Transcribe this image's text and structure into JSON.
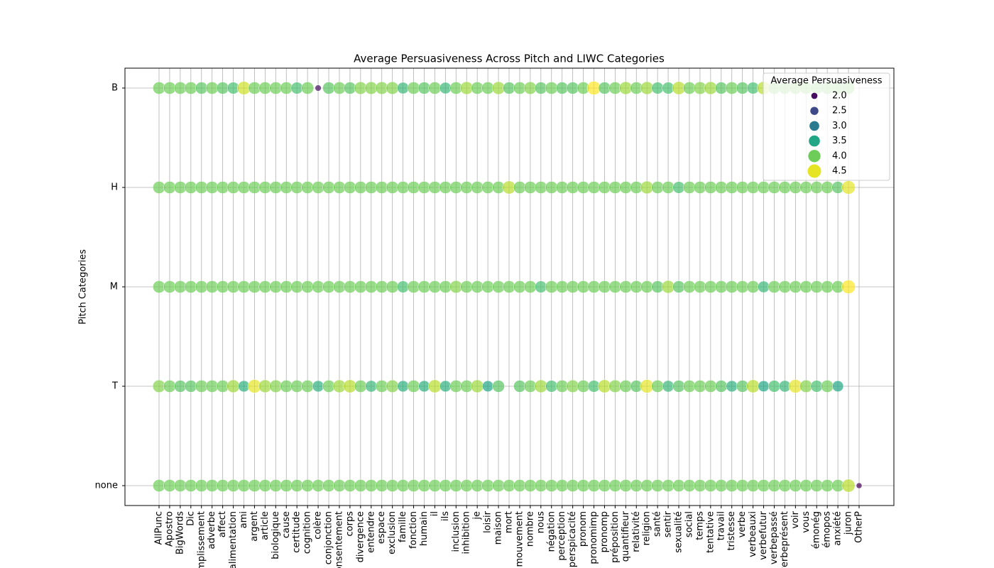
{
  "chart_data": {
    "type": "categorical-scatter",
    "title": "Average Persuasiveness Across Pitch and LIWC Categories",
    "ylabel": "Pitch Categories",
    "categories": [
      "AllPunc",
      "Apostro",
      "BigWords",
      "Dic",
      "accomplissement",
      "adverbe",
      "affect",
      "alimentation",
      "ami",
      "argent",
      "article",
      "biologique",
      "cause",
      "certitude",
      "cognition",
      "colère",
      "conjonction",
      "consentement",
      "corps",
      "divergence",
      "entendre",
      "espace",
      "exclusion",
      "famille",
      "fonction",
      "humain",
      "il",
      "ils",
      "inclusion",
      "inhibition",
      "je",
      "loisir",
      "maison",
      "mort",
      "mouvement",
      "nombre",
      "nous",
      "négation",
      "perception",
      "perspicacité",
      "pronom",
      "pronomimp",
      "pronomp",
      "préposition",
      "quantifieur",
      "relativité",
      "religion",
      "santé",
      "sentir",
      "sexualité",
      "social",
      "temps",
      "tentative",
      "travail",
      "tristesse",
      "verbe",
      "verbeauxi",
      "verbefutur",
      "verbepassé",
      "verbeprésent",
      "voir",
      "vous",
      "émonég",
      "émopos",
      "anxiété",
      "juron",
      "OtherP"
    ],
    "y_categories": [
      "B",
      "H",
      "M",
      "T",
      "none"
    ],
    "values": [
      [
        4.0,
        4.0,
        4.0,
        4.0,
        3.9,
        4.0,
        3.9,
        3.8,
        4.4,
        4.0,
        4.0,
        4.0,
        4.0,
        3.8,
        4.0,
        2.0,
        3.9,
        4.0,
        3.9,
        4.1,
        4.1,
        4.1,
        4.1,
        3.7,
        4.0,
        3.9,
        4.0,
        3.7,
        4.0,
        4.2,
        4.0,
        4.0,
        4.2,
        3.9,
        4.0,
        4.1,
        3.9,
        4.0,
        3.9,
        3.9,
        4.0,
        4.6,
        3.9,
        4.0,
        4.2,
        4.0,
        4.2,
        3.8,
        3.8,
        4.3,
        4.0,
        4.1,
        4.2,
        3.9,
        4.0,
        3.9,
        3.8,
        4.3,
        4.0,
        4.0,
        4.0,
        4.0,
        4.0,
        4.0,
        4.0,
        4.0,
        null
      ],
      [
        4.0,
        4.0,
        4.0,
        4.0,
        4.0,
        4.0,
        4.0,
        4.0,
        4.0,
        4.0,
        4.0,
        4.0,
        4.0,
        4.0,
        4.0,
        4.0,
        4.0,
        4.0,
        4.0,
        4.0,
        4.0,
        4.0,
        4.0,
        4.0,
        4.0,
        4.0,
        4.0,
        4.0,
        4.0,
        4.0,
        4.0,
        4.0,
        4.0,
        4.3,
        4.0,
        4.0,
        4.0,
        4.0,
        4.0,
        4.0,
        4.0,
        4.0,
        4.0,
        4.0,
        4.0,
        4.0,
        4.2,
        4.0,
        4.0,
        3.8,
        4.0,
        4.0,
        4.0,
        4.0,
        4.0,
        4.0,
        4.0,
        4.0,
        4.0,
        4.0,
        4.0,
        4.0,
        4.0,
        4.0,
        3.9,
        4.5,
        null
      ],
      [
        4.0,
        4.0,
        4.0,
        4.0,
        4.0,
        4.0,
        4.0,
        4.0,
        4.0,
        4.0,
        4.0,
        4.0,
        4.0,
        4.0,
        4.0,
        4.0,
        4.0,
        4.0,
        4.0,
        4.0,
        4.0,
        4.0,
        4.0,
        3.8,
        4.0,
        4.0,
        4.0,
        4.0,
        4.1,
        4.0,
        4.0,
        4.0,
        4.0,
        4.0,
        4.0,
        4.0,
        3.8,
        4.0,
        4.0,
        4.0,
        4.0,
        4.0,
        4.0,
        4.0,
        4.0,
        4.0,
        4.0,
        3.9,
        4.2,
        3.9,
        4.0,
        4.0,
        4.0,
        4.0,
        4.0,
        4.0,
        4.0,
        3.7,
        4.0,
        4.0,
        4.0,
        4.0,
        4.0,
        4.0,
        4.0,
        4.6,
        null
      ],
      [
        4.1,
        4.0,
        3.9,
        3.9,
        4.0,
        4.0,
        4.0,
        4.2,
        3.6,
        4.5,
        4.2,
        4.1,
        4.0,
        4.0,
        4.0,
        3.6,
        4.0,
        4.2,
        4.3,
        4.0,
        3.7,
        4.0,
        4.1,
        3.6,
        4.0,
        3.6,
        4.3,
        3.6,
        4.0,
        4.0,
        4.2,
        3.5,
        3.9,
        null,
        3.9,
        4.0,
        4.2,
        3.8,
        4.0,
        4.1,
        4.0,
        3.8,
        4.3,
        4.1,
        4.0,
        3.9,
        4.5,
        4.0,
        3.7,
        3.9,
        4.0,
        4.0,
        4.0,
        3.9,
        3.6,
        3.9,
        4.3,
        3.5,
        3.8,
        3.7,
        4.5,
        4.1,
        3.8,
        4.0,
        3.5,
        null,
        null
      ],
      [
        4.0,
        4.0,
        4.0,
        4.0,
        4.0,
        4.0,
        4.0,
        4.0,
        4.0,
        4.0,
        4.0,
        4.0,
        4.0,
        4.0,
        4.0,
        4.0,
        4.0,
        4.0,
        4.0,
        4.0,
        4.0,
        4.0,
        4.0,
        4.0,
        4.0,
        4.0,
        4.0,
        4.0,
        4.0,
        4.0,
        4.0,
        4.0,
        4.0,
        4.0,
        4.0,
        4.0,
        4.0,
        4.0,
        4.0,
        4.0,
        4.0,
        4.0,
        4.0,
        4.0,
        4.0,
        4.0,
        4.0,
        4.0,
        4.0,
        4.0,
        4.0,
        4.0,
        4.0,
        4.0,
        4.0,
        4.0,
        4.0,
        4.0,
        4.0,
        4.0,
        4.0,
        4.0,
        4.0,
        4.0,
        4.0,
        4.3,
        1.9
      ]
    ],
    "colormap": "viridis",
    "grid": true,
    "legend": {
      "title": "Average Persuasiveness",
      "position": "upper right",
      "values": [
        {
          "value": 2,
          "label": "2.0"
        },
        {
          "value": 2.5,
          "label": "2.5"
        },
        {
          "value": 3,
          "label": "3.0"
        },
        {
          "value": 3.5,
          "label": "3.5"
        },
        {
          "value": 4,
          "label": "4.0"
        },
        {
          "value": 4.5,
          "label": "4.5"
        }
      ]
    }
  }
}
